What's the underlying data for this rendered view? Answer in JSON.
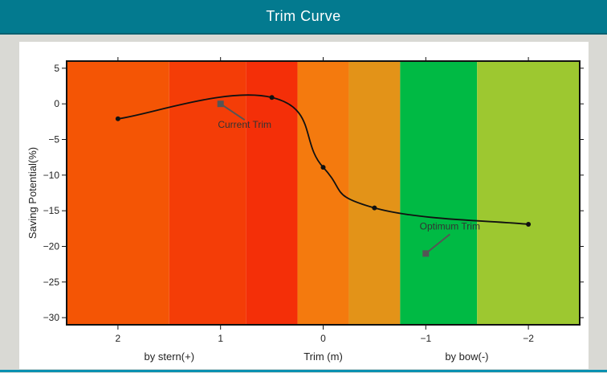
{
  "header": {
    "title": "Trim Curve"
  },
  "chart_data": {
    "type": "line",
    "xlabel": "Trim (m)",
    "ylabel": "Saving Potential(%)",
    "x_side_labels": {
      "left": "by stern(+)",
      "right": "by bow(-)"
    },
    "xlim": [
      2.5,
      -2.5
    ],
    "ylim": [
      -31,
      6
    ],
    "x_reversed": true,
    "xticks": [
      2,
      1,
      0,
      -1,
      -2
    ],
    "xtick_labels": [
      "2",
      "1",
      "0",
      "−1",
      "−2"
    ],
    "yticks": [
      5,
      0,
      -5,
      -10,
      -15,
      -20,
      -25,
      -30
    ],
    "ytick_labels": [
      "5",
      "0",
      "−5",
      "−10",
      "−15",
      "−20",
      "−25",
      "−30"
    ],
    "bands": [
      {
        "from": 2.5,
        "to": 1.5,
        "color": "#f45505"
      },
      {
        "from": 1.5,
        "to": 0.75,
        "color": "#f43d07"
      },
      {
        "from": 0.75,
        "to": 0.25,
        "color": "#f42f08"
      },
      {
        "from": 0.25,
        "to": -0.25,
        "color": "#f47a0e"
      },
      {
        "from": -0.25,
        "to": -0.75,
        "color": "#e39318"
      },
      {
        "from": -0.75,
        "to": -1.5,
        "color": "#00ba44"
      },
      {
        "from": -1.5,
        "to": -2.5,
        "color": "#9dc830"
      }
    ],
    "series": [
      {
        "x": [
          2,
          0.5,
          0,
          -0.5,
          -2
        ],
        "y": [
          -2.1,
          0.9,
          -8.9,
          -14.6,
          -16.9
        ],
        "color": "#111111"
      }
    ],
    "markers": [
      {
        "label": "Current Trim",
        "x": 1,
        "y": 0.0,
        "color": "#555555"
      },
      {
        "label": "Optimum Trim",
        "x": -1,
        "y": -21.0,
        "color": "#555555"
      }
    ],
    "grid": false
  }
}
